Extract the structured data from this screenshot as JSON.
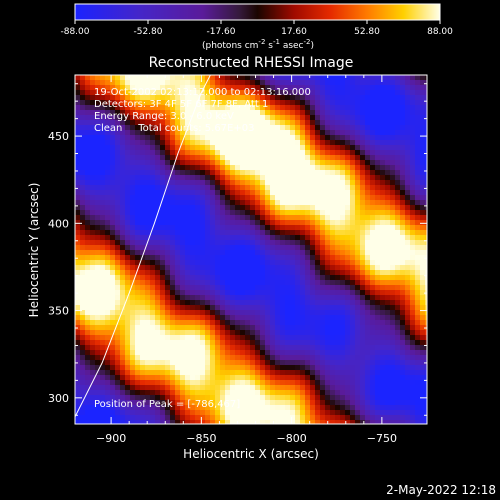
{
  "colorbar": {
    "ticks": [
      "-88.00",
      "-52.80",
      "-17.60",
      "17.60",
      "52.80",
      "88.00"
    ],
    "unit_main": "(photons cm",
    "unit_exp1": "-2",
    "unit_mid": " s",
    "unit_exp2": "-1",
    "unit_mid2": " asec",
    "unit_exp3": "-2",
    "unit_end": ")",
    "min": -88.0,
    "max": 88.0
  },
  "overlay": {
    "line1": "19-Oct-2002 02:13:12.000 to 02:13:16.000",
    "line2": "Detectors: 3F 4F 5F 6F 7F 8F, Att 1",
    "line3": "Energy Range: 3.0 - 6.0 keV",
    "line4": "Clean     Total counts: 5.67E+03",
    "peak": "Position of Peak = [-786,467]"
  },
  "footer": {
    "timestamp": "2-May-2022 12:18"
  },
  "chart_data": {
    "type": "heatmap",
    "title": "Reconstructed RHESSI Image",
    "xlabel": "Heliocentric X (arcsec)",
    "ylabel": "Heliocentric Y (arcsec)",
    "xlim": [
      -920,
      -725
    ],
    "ylim": [
      285,
      485
    ],
    "xticks": [
      {
        "value": -900,
        "label": "−900"
      },
      {
        "value": -850,
        "label": "−850"
      },
      {
        "value": -800,
        "label": "−800"
      },
      {
        "value": -750,
        "label": "−750"
      }
    ],
    "yticks": [
      {
        "value": 300,
        "label": "300"
      },
      {
        "value": 350,
        "label": "350"
      },
      {
        "value": 400,
        "label": "400"
      },
      {
        "value": 450,
        "label": "450"
      }
    ],
    "colormap": "RHESSI red-temperature (blue to white)",
    "value_range": [
      -88.0,
      88.0
    ],
    "peak_position": [
      -786,
      467
    ],
    "limb_curve": [
      [
        -922,
        285
      ],
      [
        -905,
        320
      ],
      [
        -890,
        360
      ],
      [
        -876,
        400
      ],
      [
        -863,
        440
      ],
      [
        -850,
        475
      ],
      [
        -845,
        485
      ]
    ]
  }
}
